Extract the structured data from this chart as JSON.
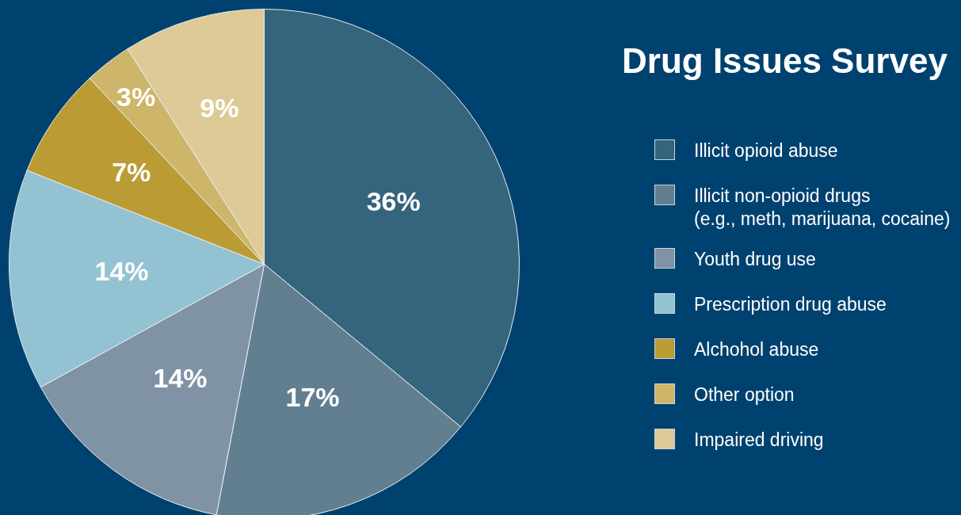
{
  "chart_data": {
    "type": "pie",
    "title": "Drug Issues Survey",
    "categories": [
      "Illicit opioid abuse",
      "Illicit non-opioid drugs\n(e.g., meth, marijuana, cocaine)",
      "Youth drug use",
      "Prescription drug abuse",
      "Alchohol abuse",
      "Other option",
      "Impaired driving"
    ],
    "values": [
      36,
      17,
      14,
      14,
      7,
      3,
      9
    ],
    "colors": [
      "#34657c",
      "#627f91",
      "#7f93a5",
      "#93c2d2",
      "#bb9b33",
      "#cdb56a",
      "#ddca96"
    ],
    "value_labels": [
      "36%",
      "17%",
      "14%",
      "14%",
      "7%",
      "3%",
      "9%"
    ],
    "legend": "right"
  }
}
